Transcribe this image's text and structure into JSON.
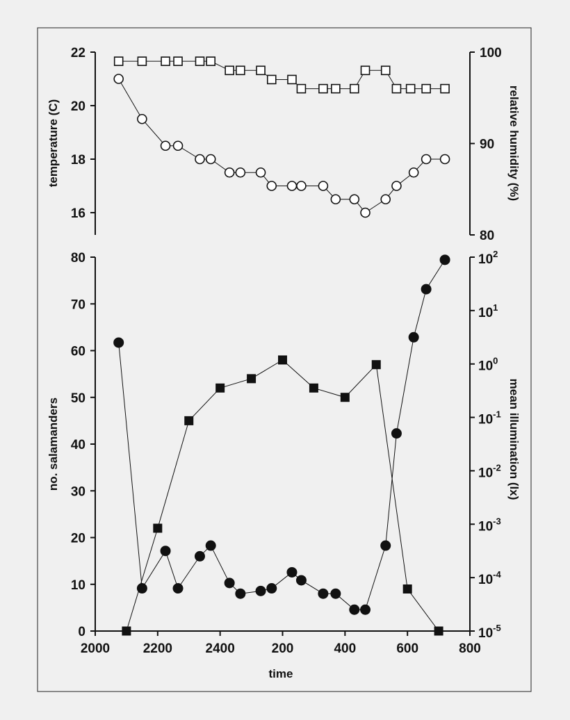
{
  "chart_data": [
    {
      "type": "line",
      "panel": "top",
      "x_ticks": [],
      "y_left": {
        "label": "temperature (C)",
        "ticks": [
          16,
          18,
          20,
          22
        ],
        "lim": [
          15,
          22
        ]
      },
      "y_right": {
        "label": "relative humidity (%)",
        "ticks": [
          80,
          90,
          100
        ],
        "lim": [
          80,
          100
        ]
      },
      "series": [
        {
          "marker": "open-square",
          "axis": "right",
          "x": [
            2075,
            2150,
            2225,
            2265,
            2335,
            2370,
            2430,
            2465,
            2530,
            2565,
            2630,
            2660,
            2730,
            2770,
            2830,
            2865,
            2930,
            2965,
            3010,
            3060,
            3120
          ],
          "y": [
            99,
            99,
            99,
            99,
            99,
            99,
            98,
            98,
            98,
            97,
            97,
            96,
            96,
            96,
            96,
            98,
            98,
            96,
            96,
            96,
            96
          ]
        },
        {
          "marker": "open-circle",
          "axis": "left",
          "x": [
            2075,
            2150,
            2225,
            2265,
            2335,
            2370,
            2430,
            2465,
            2530,
            2565,
            2630,
            2660,
            2730,
            2770,
            2830,
            2865,
            2930,
            2965,
            3020,
            3060,
            3120
          ],
          "y": [
            21,
            19.5,
            18.5,
            18.5,
            18,
            18,
            17.5,
            17.5,
            17.5,
            17,
            17,
            17,
            17,
            16.5,
            16.5,
            16,
            16.5,
            17,
            17.5,
            18,
            18
          ]
        }
      ]
    },
    {
      "type": "line",
      "panel": "bottom",
      "xlabel": "time",
      "x_ticks": [
        {
          "v": 2000,
          "label": "2000"
        },
        {
          "v": 2200,
          "label": "2200"
        },
        {
          "v": 2400,
          "label": "2400"
        },
        {
          "v": 2600,
          "label": "200"
        },
        {
          "v": 2800,
          "label": "400"
        },
        {
          "v": 3000,
          "label": "600"
        },
        {
          "v": 3200,
          "label": "800"
        }
      ],
      "xlim": [
        2000,
        3200
      ],
      "y_left": {
        "label": "no. salamanders",
        "ticks": [
          0,
          10,
          20,
          30,
          40,
          50,
          60,
          70,
          80
        ],
        "lim": [
          0,
          80
        ]
      },
      "y_right": {
        "label": "mean illumination (lx)",
        "log": true,
        "ticks": [
          -5,
          -4,
          -3,
          -2,
          -1,
          0,
          1,
          2
        ],
        "tick_base": "10",
        "lim": [
          -5,
          2
        ]
      },
      "series": [
        {
          "marker": "filled-square",
          "axis": "left",
          "x": [
            2100,
            2200,
            2300,
            2400,
            2500,
            2600,
            2700,
            2800,
            2900,
            3000,
            3100
          ],
          "y": [
            0,
            22,
            45,
            52,
            54,
            58,
            52,
            50,
            57,
            9,
            0
          ]
        },
        {
          "marker": "filled-circle",
          "axis": "right",
          "x": [
            2075,
            2150,
            2225,
            2265,
            2335,
            2370,
            2430,
            2465,
            2530,
            2565,
            2630,
            2660,
            2730,
            2770,
            2830,
            2865,
            2930,
            2965,
            3020,
            3060,
            3120
          ],
          "y": [
            0.4,
            -4.2,
            -3.5,
            -4.2,
            -3.6,
            -3.4,
            -4.1,
            -4.3,
            -4.25,
            -4.2,
            -3.9,
            -4.05,
            -4.3,
            -4.3,
            -4.6,
            -4.6,
            -3.4,
            -1.3,
            0.5,
            1.4,
            1.95
          ]
        }
      ]
    }
  ]
}
